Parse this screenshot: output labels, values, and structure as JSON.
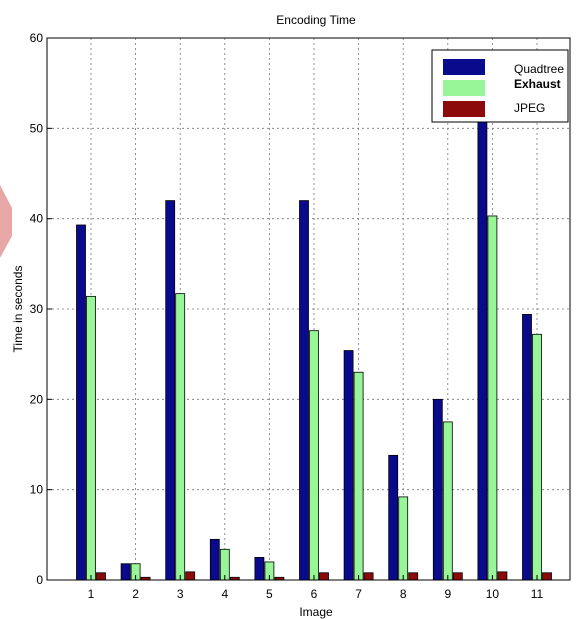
{
  "chart_data": {
    "type": "bar",
    "title": "Encoding Time",
    "xlabel": "Image",
    "ylabel": "Time in seconds",
    "categories": [
      "1",
      "2",
      "3",
      "4",
      "5",
      "6",
      "7",
      "8",
      "9",
      "10",
      "11"
    ],
    "ylim": [
      0,
      60
    ],
    "yticks": [
      0,
      10,
      20,
      30,
      40,
      50,
      60
    ],
    "grid": true,
    "legend_position": "top-right",
    "series": [
      {
        "name": "Quadtree",
        "color": "#0a0a8c",
        "values": [
          39.3,
          1.8,
          42.0,
          4.5,
          2.5,
          42.0,
          25.4,
          13.8,
          20.0,
          55.0,
          29.4
        ]
      },
      {
        "name": "Exhaust",
        "color": "#98f698",
        "values": [
          31.4,
          1.8,
          31.7,
          3.4,
          2.0,
          27.6,
          23.0,
          9.2,
          17.5,
          40.3,
          27.2
        ]
      },
      {
        "name": "JPEG",
        "color": "#8c0a0a",
        "values": [
          0.8,
          0.3,
          0.9,
          0.3,
          0.3,
          0.8,
          0.8,
          0.8,
          0.8,
          0.9,
          0.8
        ]
      }
    ]
  },
  "decoration": {
    "side_arrow_color": "#e8a7a7"
  }
}
